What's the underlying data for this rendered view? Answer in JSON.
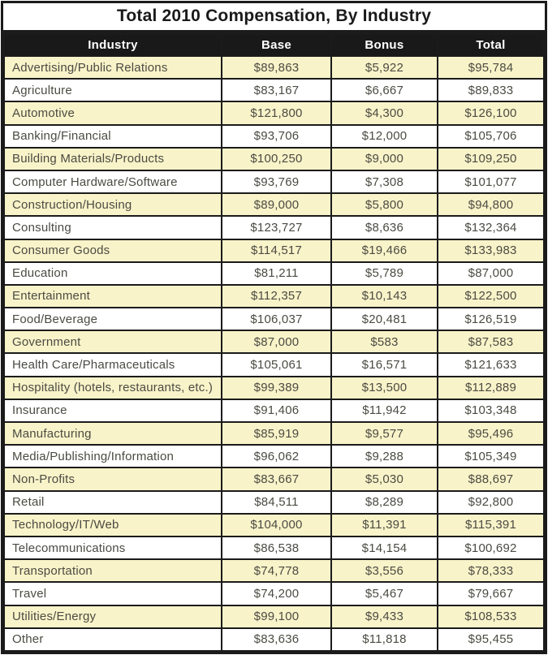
{
  "title": "Total 2010 Compensation, By Industry",
  "columns": {
    "industry": "Industry",
    "base": "Base",
    "bonus": "Bonus",
    "total": "Total"
  },
  "colors": {
    "row_highlight": "#F9F3C9",
    "row_default": "#FFFFFF",
    "header_background": "#191919",
    "header_text": "#FFFFFF",
    "border": "#1B1B1B",
    "body_text": "#4B4B43"
  },
  "table": {
    "rows": [
      {
        "industry": "Advertising/Public Relations",
        "base": "$89,863",
        "bonus": "$5,922",
        "total": "$95,784"
      },
      {
        "industry": "Agriculture",
        "base": "$83,167",
        "bonus": "$6,667",
        "total": "$89,833"
      },
      {
        "industry": "Automotive",
        "base": "$121,800",
        "bonus": "$4,300",
        "total": "$126,100"
      },
      {
        "industry": "Banking/Financial",
        "base": "$93,706",
        "bonus": "$12,000",
        "total": "$105,706"
      },
      {
        "industry": "Building Materials/Products",
        "base": "$100,250",
        "bonus": "$9,000",
        "total": "$109,250"
      },
      {
        "industry": "Computer Hardware/Software",
        "base": "$93,769",
        "bonus": "$7,308",
        "total": "$101,077"
      },
      {
        "industry": "Construction/Housing",
        "base": "$89,000",
        "bonus": "$5,800",
        "total": "$94,800"
      },
      {
        "industry": "Consulting",
        "base": "$123,727",
        "bonus": "$8,636",
        "total": "$132,364"
      },
      {
        "industry": "Consumer Goods",
        "base": "$114,517",
        "bonus": "$19,466",
        "total": "$133,983"
      },
      {
        "industry": "Education",
        "base": "$81,211",
        "bonus": "$5,789",
        "total": "$87,000"
      },
      {
        "industry": "Entertainment",
        "base": "$112,357",
        "bonus": "$10,143",
        "total": "$122,500"
      },
      {
        "industry": "Food/Beverage",
        "base": "$106,037",
        "bonus": "$20,481",
        "total": "$126,519"
      },
      {
        "industry": "Government",
        "base": "$87,000",
        "bonus": "$583",
        "total": "$87,583"
      },
      {
        "industry": "Health Care/Pharmaceuticals",
        "base": "$105,061",
        "bonus": "$16,571",
        "total": "$121,633"
      },
      {
        "industry": "Hospitality (hotels, restaurants, etc.)",
        "base": "$99,389",
        "bonus": "$13,500",
        "total": "$112,889"
      },
      {
        "industry": "Insurance",
        "base": "$91,406",
        "bonus": "$11,942",
        "total": "$103,348"
      },
      {
        "industry": "Manufacturing",
        "base": "$85,919",
        "bonus": "$9,577",
        "total": "$95,496"
      },
      {
        "industry": "Media/Publishing/Information",
        "base": "$96,062",
        "bonus": "$9,288",
        "total": "$105,349"
      },
      {
        "industry": "Non-Profits",
        "base": "$83,667",
        "bonus": "$5,030",
        "total": "$88,697"
      },
      {
        "industry": "Retail",
        "base": "$84,511",
        "bonus": "$8,289",
        "total": "$92,800"
      },
      {
        "industry": "Technology/IT/Web",
        "base": "$104,000",
        "bonus": "$11,391",
        "total": "$115,391"
      },
      {
        "industry": "Telecommunications",
        "base": "$86,538",
        "bonus": "$14,154",
        "total": "$100,692"
      },
      {
        "industry": "Transportation",
        "base": "$74,778",
        "bonus": "$3,556",
        "total": "$78,333"
      },
      {
        "industry": "Travel",
        "base": "$74,200",
        "bonus": "$5,467",
        "total": "$79,667"
      },
      {
        "industry": "Utilities/Energy",
        "base": "$99,100",
        "bonus": "$9,433",
        "total": "$108,533"
      },
      {
        "industry": "Other",
        "base": "$83,636",
        "bonus": "$11,818",
        "total": "$95,455"
      }
    ]
  },
  "chart_data": {
    "type": "table",
    "title": "Total 2010 Compensation, By Industry",
    "columns": [
      "Industry",
      "Base",
      "Bonus",
      "Total"
    ],
    "rows": [
      [
        "Advertising/Public Relations",
        89863,
        5922,
        95784
      ],
      [
        "Agriculture",
        83167,
        6667,
        89833
      ],
      [
        "Automotive",
        121800,
        4300,
        126100
      ],
      [
        "Banking/Financial",
        93706,
        12000,
        105706
      ],
      [
        "Building Materials/Products",
        100250,
        9000,
        109250
      ],
      [
        "Computer Hardware/Software",
        93769,
        7308,
        101077
      ],
      [
        "Construction/Housing",
        89000,
        5800,
        94800
      ],
      [
        "Consulting",
        123727,
        8636,
        132364
      ],
      [
        "Consumer Goods",
        114517,
        19466,
        133983
      ],
      [
        "Education",
        81211,
        5789,
        87000
      ],
      [
        "Entertainment",
        112357,
        10143,
        122500
      ],
      [
        "Food/Beverage",
        106037,
        20481,
        126519
      ],
      [
        "Government",
        87000,
        583,
        87583
      ],
      [
        "Health Care/Pharmaceuticals",
        105061,
        16571,
        121633
      ],
      [
        "Hospitality (hotels, restaurants, etc.)",
        99389,
        13500,
        112889
      ],
      [
        "Insurance",
        91406,
        11942,
        103348
      ],
      [
        "Manufacturing",
        85919,
        9577,
        95496
      ],
      [
        "Media/Publishing/Information",
        96062,
        9288,
        105349
      ],
      [
        "Non-Profits",
        83667,
        5030,
        88697
      ],
      [
        "Retail",
        84511,
        8289,
        92800
      ],
      [
        "Technology/IT/Web",
        104000,
        11391,
        115391
      ],
      [
        "Telecommunications",
        86538,
        14154,
        100692
      ],
      [
        "Transportation",
        74778,
        3556,
        78333
      ],
      [
        "Travel",
        74200,
        5467,
        79667
      ],
      [
        "Utilities/Energy",
        99100,
        9433,
        108533
      ],
      [
        "Other",
        83636,
        11818,
        95455
      ]
    ],
    "layout_hints": {
      "row_striping": "odd rows highlighted pale yellow",
      "values_format": "USD with thousands separators",
      "header_style": "black background, white bold text"
    }
  }
}
